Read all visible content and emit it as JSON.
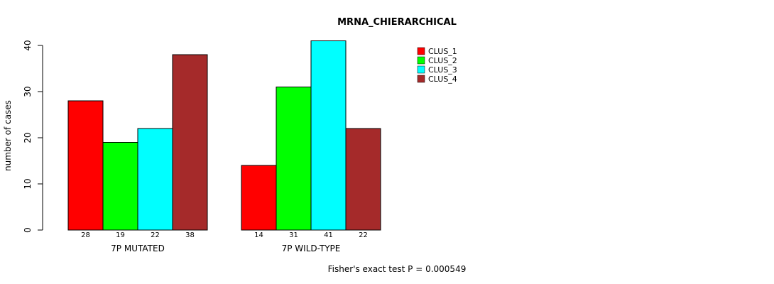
{
  "chart_data": {
    "type": "bar",
    "title": "MRNA_CHIERARCHICAL",
    "ylabel": "number of cases",
    "xlabel": "",
    "ylim": [
      0,
      40
    ],
    "yticks": [
      "0",
      "10",
      "20",
      "30",
      "40"
    ],
    "categories": [
      "7P MUTATED",
      "7P WILD-TYPE"
    ],
    "series": [
      {
        "name": "CLUS_1",
        "color": "#ff0000",
        "values": [
          28,
          14
        ]
      },
      {
        "name": "CLUS_2",
        "color": "#00ff00",
        "values": [
          19,
          31
        ]
      },
      {
        "name": "CLUS_3",
        "color": "#00ffff",
        "values": [
          22,
          41
        ]
      },
      {
        "name": "CLUS_4",
        "color": "#a52a2a",
        "values": [
          38,
          22
        ]
      }
    ],
    "bar_labels": [
      [
        "28",
        "19",
        "22",
        "38"
      ],
      [
        "14",
        "31",
        "41",
        "22"
      ]
    ],
    "footnote": "Fisher's exact test P = 0.000549",
    "legend_position": "top-right",
    "grid": false
  }
}
